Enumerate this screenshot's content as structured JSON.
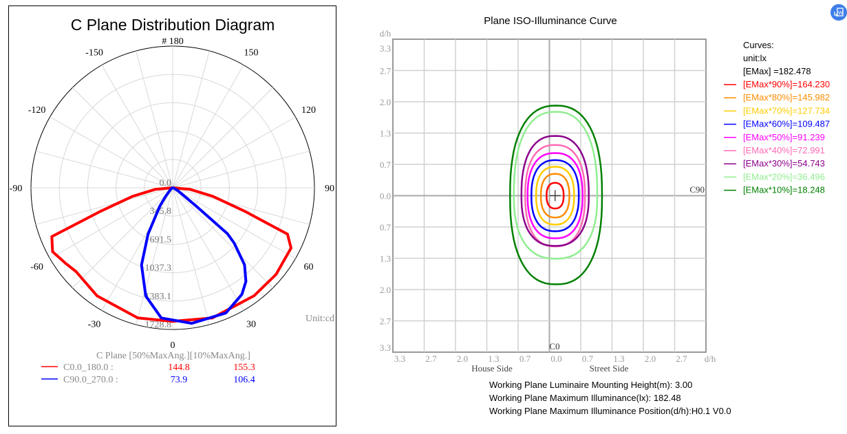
{
  "chart_data": [
    {
      "type": "polar",
      "title": "C Plane Distribution Diagram",
      "top_label": "# 180",
      "angle_ticks": [
        -150,
        -120,
        -90,
        -60,
        -30,
        0,
        30,
        60,
        90,
        120,
        150
      ],
      "radial_ticks": [
        "0.0",
        "345.8",
        "691.5",
        "1037.3",
        "1383.1",
        "1728.8"
      ],
      "rmax": 1728.8,
      "unit_label": "Unit:cd",
      "legend_header": "C Plane  [50%MaxAng.][10%MaxAng.]",
      "series": [
        {
          "name": "C0.0_180.0  :",
          "color": "#ff0000",
          "half50": "144.8",
          "half10": "155.3",
          "points": [
            [
              -90,
              0
            ],
            [
              -85,
              210
            ],
            [
              -78,
              500
            ],
            [
              -72,
              920
            ],
            [
              -68,
              1590
            ],
            [
              -62,
              1660
            ],
            [
              -55,
              1600
            ],
            [
              -49,
              1560
            ],
            [
              -35,
              1610
            ],
            [
              -15,
              1645
            ],
            [
              0,
              1630
            ],
            [
              17,
              1660
            ],
            [
              37,
              1650
            ],
            [
              50,
              1645
            ],
            [
              63,
              1620
            ],
            [
              68,
              1510
            ],
            [
              72,
              920
            ],
            [
              78,
              500
            ],
            [
              85,
              210
            ],
            [
              90,
              0
            ]
          ]
        },
        {
          "name": "C90.0_270.0 :",
          "color": "#0000ff",
          "half50": "73.9",
          "half10": "106.4",
          "points": [
            [
              -60,
              20
            ],
            [
              -40,
              125
            ],
            [
              -35,
              277
            ],
            [
              -28,
              640
            ],
            [
              -22,
              1015
            ],
            [
              -14,
              1360
            ],
            [
              -5,
              1595
            ],
            [
              8,
              1670
            ],
            [
              23,
              1660
            ],
            [
              33,
              1550
            ],
            [
              38,
              1450
            ],
            [
              43,
              1285
            ],
            [
              48,
              1010
            ],
            [
              50,
              870
            ],
            [
              52,
              360
            ],
            [
              60,
              80
            ],
            [
              80,
              10
            ]
          ]
        }
      ]
    },
    {
      "type": "contour",
      "title": "Plane ISO-Illuminance Curve",
      "axis_label": "d/h",
      "y_tick_labels": [
        "3.3",
        "2.7",
        "2.0",
        "1.3",
        "0.7",
        "0.0",
        "0.7",
        "1.3",
        "2.0",
        "2.7",
        "3.3"
      ],
      "x_tick_labels": [
        "3.3",
        "2.7",
        "2.0",
        "1.3",
        "0.7",
        "0.0",
        "0.7",
        "1.3",
        "2.0",
        "2.7"
      ],
      "range": [
        -3.3,
        3.3
      ],
      "house_side": "House Side",
      "street_side": "Street Side",
      "c0_label": "C0",
      "c90_label": "C90",
      "legend_title": "Curves:",
      "legend_unit": "unit:lx",
      "emax_label": "[EMax]    =182.478",
      "contours": [
        {
          "label": "[EMax*90%]=164.230",
          "color": "#ff0000",
          "cx": 0.12,
          "left": 0.18,
          "right": 0.18,
          "top": 0.27,
          "bottom": 0.27
        },
        {
          "label": "[EMax*80%]=145.982",
          "color": "#ff8c00",
          "cx": 0.12,
          "left": 0.3,
          "right": 0.3,
          "top": 0.46,
          "bottom": 0.46
        },
        {
          "label": "[EMax*70%]=127.734",
          "color": "#ffcc00",
          "cx": 0.12,
          "left": 0.4,
          "right": 0.4,
          "top": 0.61,
          "bottom": 0.61
        },
        {
          "label": "[EMax*60%]=109.487",
          "color": "#0000ff",
          "cx": 0.12,
          "left": 0.5,
          "right": 0.5,
          "top": 0.75,
          "bottom": 0.75
        },
        {
          "label": "[EMax*50%]=91.239",
          "color": "#ff00ff",
          "cx": 0.12,
          "left": 0.58,
          "right": 0.58,
          "top": 0.9,
          "bottom": 0.9
        },
        {
          "label": "[EMax*40%]=72.991",
          "color": "#ff69b4",
          "cx": 0.12,
          "left": 0.63,
          "right": 0.63,
          "top": 1.07,
          "bottom": 1.07
        },
        {
          "label": "[EMax*30%]=54.743",
          "color": "#8b008b",
          "cx": 0.12,
          "left": 0.71,
          "right": 0.71,
          "top": 1.26,
          "bottom": 1.06
        },
        {
          "label": "[EMax*20%]=36.496",
          "color": "#90ee90",
          "cx": 0.13,
          "left": 0.88,
          "right": 0.88,
          "top": 1.77,
          "bottom": 1.33
        },
        {
          "label": "[EMax*10%]=18.248",
          "color": "#008000",
          "cx": 0.14,
          "left": 0.97,
          "right": 0.97,
          "top": 1.9,
          "bottom": 1.87
        }
      ],
      "info": [
        "Working Plane Luminaire Mounting Height(m): 3.00",
        "Working Plane Maximum Illuminance(lx): 182.48",
        "Working Plane Maximum Illuminance Position(d/h):H0.1 V0.0"
      ]
    }
  ],
  "icons": {
    "app_badge": "export-word-icon"
  }
}
